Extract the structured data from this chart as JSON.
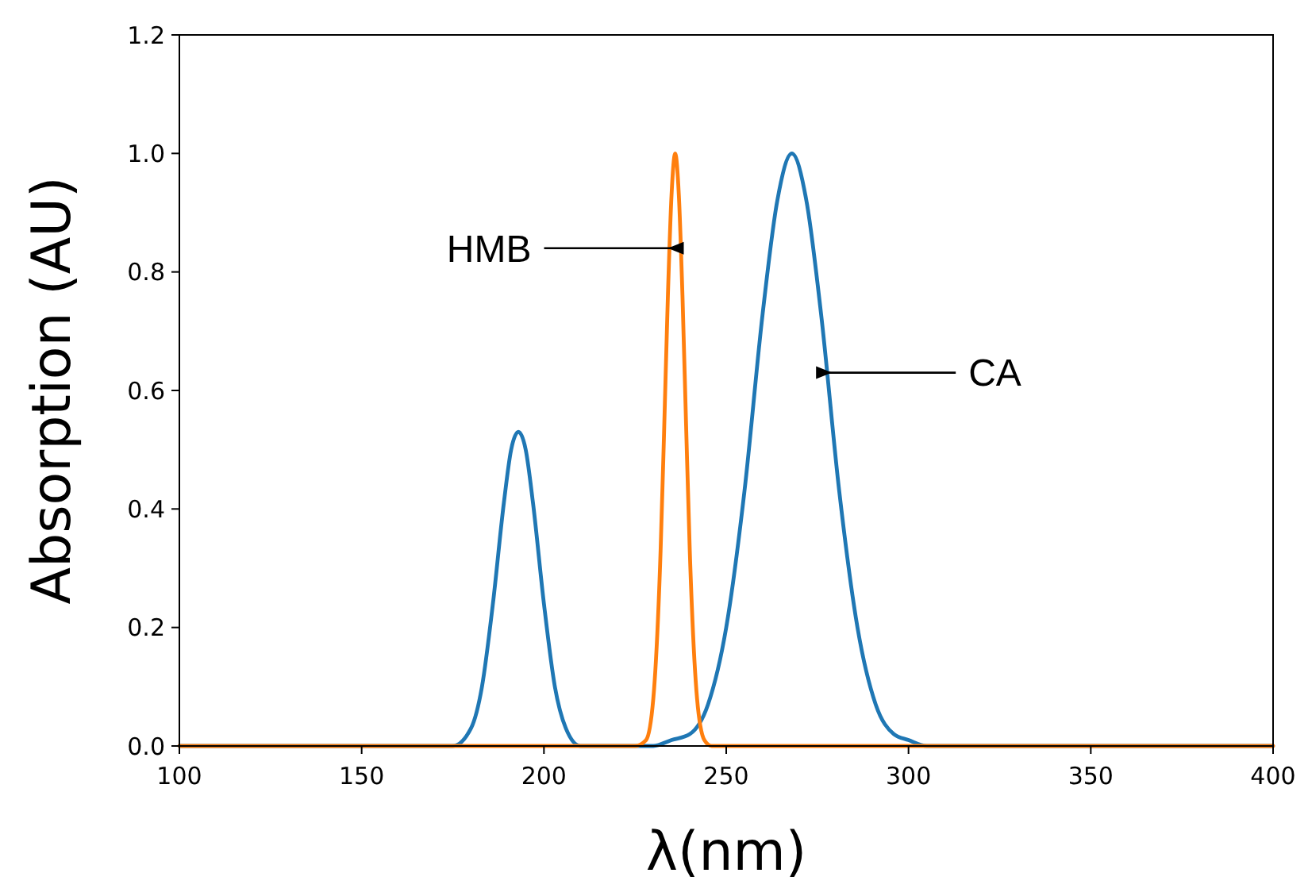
{
  "chart_data": {
    "type": "line",
    "xlabel": "λ(nm)",
    "ylabel": "Absorption (AU)",
    "xlim": [
      100,
      400
    ],
    "ylim": [
      0,
      1.2
    ],
    "xticks": [
      100,
      150,
      200,
      250,
      300,
      350,
      400
    ],
    "yticks": [
      {
        "value": 0,
        "label": "0.0"
      },
      {
        "value": 0.2,
        "label": "0.2"
      },
      {
        "value": 0.4,
        "label": "0.4"
      },
      {
        "value": 0.6,
        "label": "0.6"
      },
      {
        "value": 0.8,
        "label": "0.8"
      },
      {
        "value": 1,
        "label": "1.0"
      },
      {
        "value": 1.2,
        "label": "1.2"
      }
    ],
    "grid": false,
    "line_style": "solid",
    "marker": "none",
    "series": [
      {
        "color": "#1f77b4",
        "x": [
          100,
          170,
          175,
          180,
          183,
          186,
          189,
          191,
          193,
          195,
          197,
          200,
          203,
          206,
          210,
          215,
          220,
          225,
          230,
          235,
          240,
          245,
          250,
          255,
          260,
          264,
          268,
          272,
          276,
          281,
          286,
          291,
          296,
          300,
          305,
          400
        ],
        "values": [
          0,
          0,
          0,
          0.03,
          0.1,
          0.24,
          0.41,
          0.5,
          0.53,
          0.5,
          0.41,
          0.24,
          0.1,
          0.03,
          0,
          0,
          0,
          0,
          0,
          0.01,
          0.02,
          0.07,
          0.2,
          0.43,
          0.73,
          0.92,
          1,
          0.92,
          0.73,
          0.43,
          0.2,
          0.07,
          0.02,
          0.01,
          0,
          0
        ]
      },
      {
        "color": "#ff7f0e",
        "x": [
          100,
          225,
          228,
          230,
          232,
          233,
          234,
          235,
          236,
          237,
          238,
          239,
          240,
          242,
          244,
          246,
          400
        ],
        "values": [
          0,
          0,
          0.01,
          0.08,
          0.33,
          0.54,
          0.76,
          0.93,
          1,
          0.93,
          0.76,
          0.54,
          0.33,
          0.08,
          0.01,
          0,
          0
        ]
      }
    ],
    "annotations": [
      {
        "text": "HMB",
        "x": 234,
        "y": 0.84
      },
      {
        "text": "CA",
        "x": 279,
        "y": 0.63
      }
    ]
  }
}
